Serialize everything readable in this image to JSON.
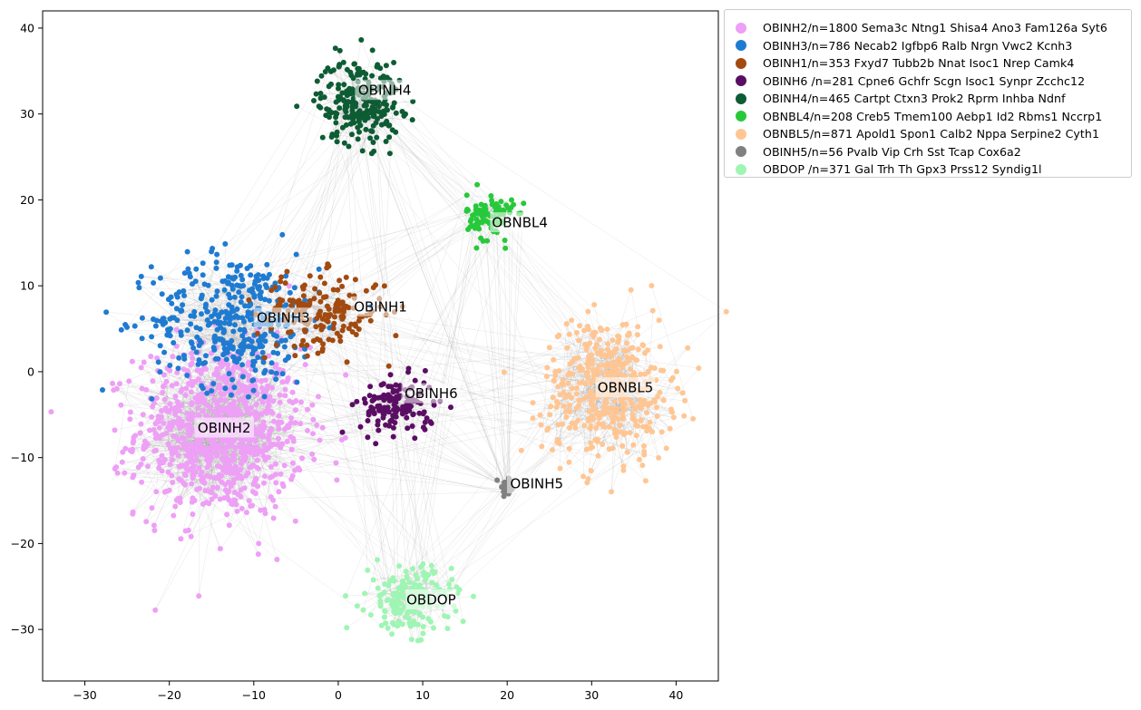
{
  "chart_data": {
    "type": "scatter",
    "title": "",
    "xlabel": "",
    "ylabel": "",
    "xlim": [
      -35,
      45
    ],
    "ylim": [
      -36,
      42
    ],
    "x_ticks": [
      -30,
      -20,
      -10,
      0,
      10,
      20,
      30,
      40
    ],
    "y_ticks": [
      -30,
      -20,
      -10,
      0,
      10,
      20,
      30,
      40
    ],
    "x_tick_labels": [
      "−30",
      "−20",
      "−10",
      "0",
      "10",
      "20",
      "30",
      "40"
    ],
    "y_tick_labels": [
      "−30",
      "−20",
      "−10",
      "0",
      "10",
      "20",
      "30",
      "40"
    ],
    "grid": false,
    "legend_position": "outside-right-top",
    "series": [
      {
        "name": "OBINH2/n=1800 Sema3c Ntng1 Shisa4 Ano3 Fam126a Syt6",
        "color": "#ee9ff6",
        "count": 1800,
        "center": [
          -14,
          -7
        ],
        "spread": [
          9,
          9
        ],
        "label": "OBINH2",
        "label_pos": [
          -13.5,
          -6.5
        ]
      },
      {
        "name": "OBINH3/n=786 Necab2 Igfbp6 Ralb Nrgn Vwc2 Kcnh3",
        "color": "#1f7bd1",
        "count": 786,
        "center": [
          -12,
          6
        ],
        "spread": [
          9,
          7
        ],
        "label": "OBINH3",
        "label_pos": [
          -6.5,
          6.3
        ]
      },
      {
        "name": "OBINH1/n=353 Fxyd7 Tubb2b Nnat Isoc1 Nrep Camk4",
        "color": "#a24a10",
        "count": 353,
        "center": [
          -2,
          7
        ],
        "spread": [
          7,
          4
        ],
        "label": "OBINH1",
        "label_pos": [
          5,
          7.6
        ]
      },
      {
        "name": "OBINH6 /n=281 Cpne6 Gchfr Scgn Isoc1 Synpr Zcchc12",
        "color": "#5a0e63",
        "count": 281,
        "center": [
          7,
          -4
        ],
        "spread": [
          4,
          3
        ],
        "label": "OBINH6",
        "label_pos": [
          11,
          -2.5
        ]
      },
      {
        "name": "OBINH4/n=465 Cartpt Ctxn3 Prok2 Rprm Inhba Ndnf",
        "color": "#0d5c34",
        "count": 465,
        "center": [
          2.5,
          31.5
        ],
        "spread": [
          4.5,
          4.5
        ],
        "label": "OBINH4",
        "label_pos": [
          5.5,
          32.8
        ]
      },
      {
        "name": "OBNBL4/n=208 Creb5 Tmem100 Aebp1 Id2 Rbms1 Nccrp1",
        "color": "#27c93b",
        "count": 208,
        "center": [
          18,
          18
        ],
        "spread": [
          2.5,
          2.5
        ],
        "label": "OBNBL4",
        "label_pos": [
          21.5,
          17.4
        ]
      },
      {
        "name": "OBNBL5/n=871 Apold1 Spon1 Calb2 Nppa Serpine2 Cyth1",
        "color": "#ffc694",
        "count": 871,
        "center": [
          32,
          -2
        ],
        "spread": [
          7,
          7.5
        ],
        "label": "OBNBL5",
        "label_pos": [
          34,
          -1.8
        ]
      },
      {
        "name": "OBINH5/n=56 Pvalb Vip Crh Sst Tcap Cox6a2",
        "color": "#808080",
        "count": 56,
        "center": [
          20,
          -13.5
        ],
        "spread": [
          1,
          1
        ],
        "label": "OBINH5",
        "label_pos": [
          23.5,
          -13
        ]
      },
      {
        "name": "OBDOP /n=371 Gal Trh Th Gpx3 Prss12 Syndig1l",
        "color": "#9ff5b3",
        "count": 371,
        "center": [
          8.5,
          -26.5
        ],
        "spread": [
          4.5,
          3.5
        ],
        "label": "OBDOP",
        "label_pos": [
          11,
          -26.5
        ]
      }
    ]
  }
}
